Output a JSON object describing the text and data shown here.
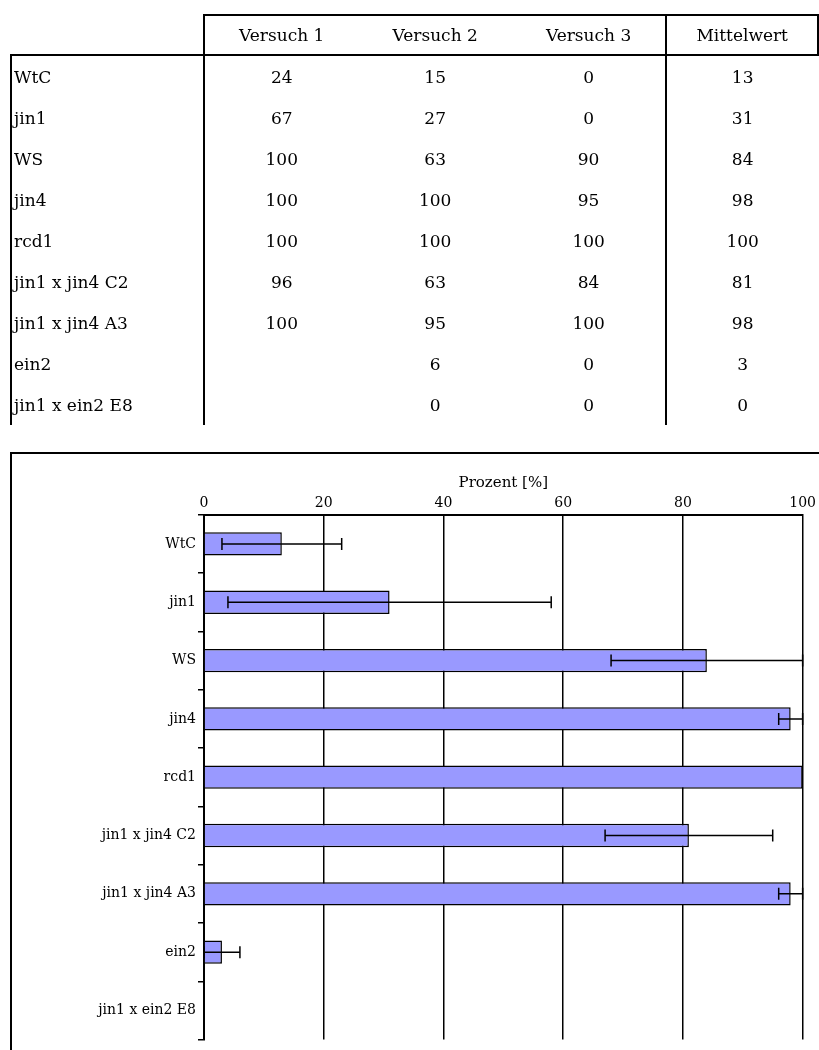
{
  "chart_data": [
    {
      "type": "other",
      "data_labels": true,
      "categories": [
        "WtC",
        "jin1",
        "WS",
        "jin4",
        "rcd1",
        "jin1 x jin4  C2",
        "jin1 x jin4  A3",
        "ein2",
        "jin1 x ein2  E8"
      ],
      "series": [
        {
          "name": "Versuch 1",
          "values": [
            24,
            67,
            100,
            100,
            100,
            96,
            100,
            null,
            null
          ]
        },
        {
          "name": "Versuch 2",
          "values": [
            15,
            27,
            63,
            100,
            100,
            63,
            95,
            6,
            0
          ]
        },
        {
          "name": "Versuch 3",
          "values": [
            0,
            0,
            90,
            95,
            100,
            84,
            100,
            0,
            0
          ]
        },
        {
          "name": "Mittelwert",
          "values": [
            13,
            31,
            84,
            98,
            100,
            81,
            98,
            3,
            0
          ]
        }
      ]
    },
    {
      "type": "bar",
      "orientation": "horizontal",
      "xlabel": "Prozent [%]",
      "categories": [
        "WtC",
        "jin1",
        "WS",
        "jin4",
        "rcd1",
        "jin1 x jin4 C2",
        "jin1 x jin4 A3",
        "ein2",
        "jin1 x ein2 E8"
      ],
      "values": [
        13,
        31,
        84,
        98,
        100,
        81,
        98,
        3,
        0
      ],
      "errors": [
        10,
        27,
        16,
        2,
        0,
        14,
        2,
        3,
        null
      ],
      "color": "#9999ff",
      "xlim": [
        0,
        100
      ],
      "xticks": [
        0,
        20,
        40,
        60,
        80,
        100
      ],
      "grid": "x"
    }
  ]
}
